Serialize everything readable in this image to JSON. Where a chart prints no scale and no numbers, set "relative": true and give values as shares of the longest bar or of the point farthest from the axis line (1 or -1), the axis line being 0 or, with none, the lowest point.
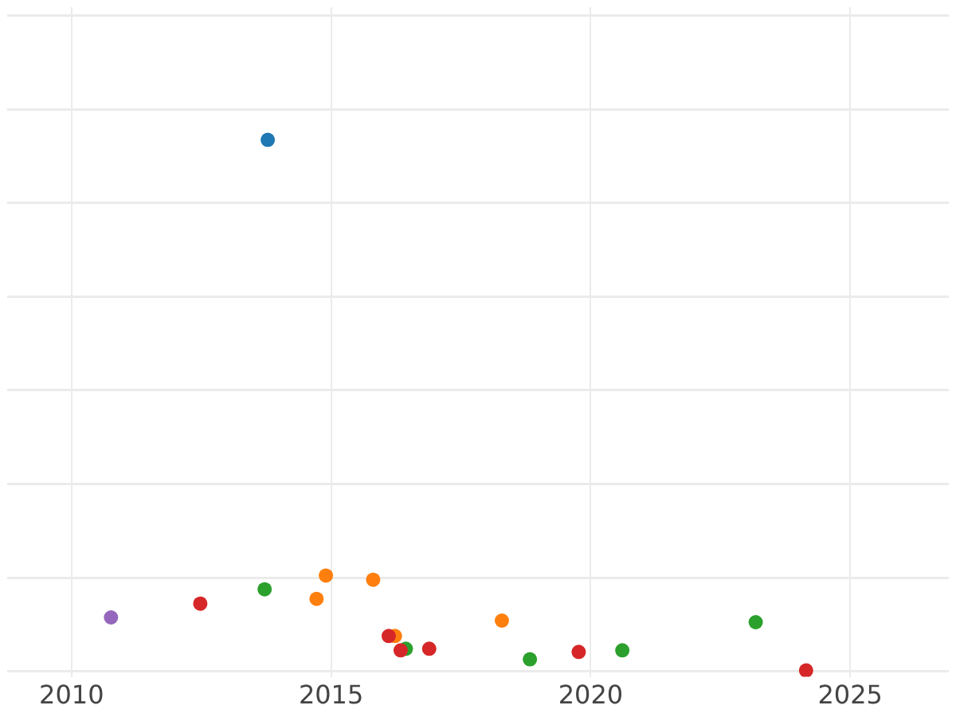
{
  "chart_data": {
    "type": "scatter",
    "relative": true,
    "xlim": [
      2008.76,
      2026.9
    ],
    "xticks": [
      2010,
      2015,
      2020,
      2025
    ],
    "grid": true,
    "legend": false,
    "marker": "circle",
    "series": [
      {
        "color": "#1f77b4",
        "x": [
          2013.78
        ],
        "values": [
          1.0
        ]
      },
      {
        "color": "#ff7f0e",
        "x": [
          2014.72,
          2014.9,
          2015.81,
          2016.23,
          2018.29
        ],
        "values": [
          0.135,
          0.179,
          0.171,
          0.065,
          0.094
        ]
      },
      {
        "color": "#2ca02c",
        "x": [
          2013.72,
          2016.44,
          2018.83,
          2020.61,
          2023.18
        ],
        "values": [
          0.153,
          0.041,
          0.021,
          0.038,
          0.091
        ]
      },
      {
        "color": "#d62728",
        "x": [
          2012.48,
          2016.11,
          2016.34,
          2016.89,
          2019.77,
          2024.15
        ],
        "values": [
          0.126,
          0.065,
          0.038,
          0.041,
          0.035,
          0
        ]
      },
      {
        "color": "#9467bd",
        "x": [
          2010.76
        ],
        "values": [
          0.1
        ]
      }
    ]
  }
}
